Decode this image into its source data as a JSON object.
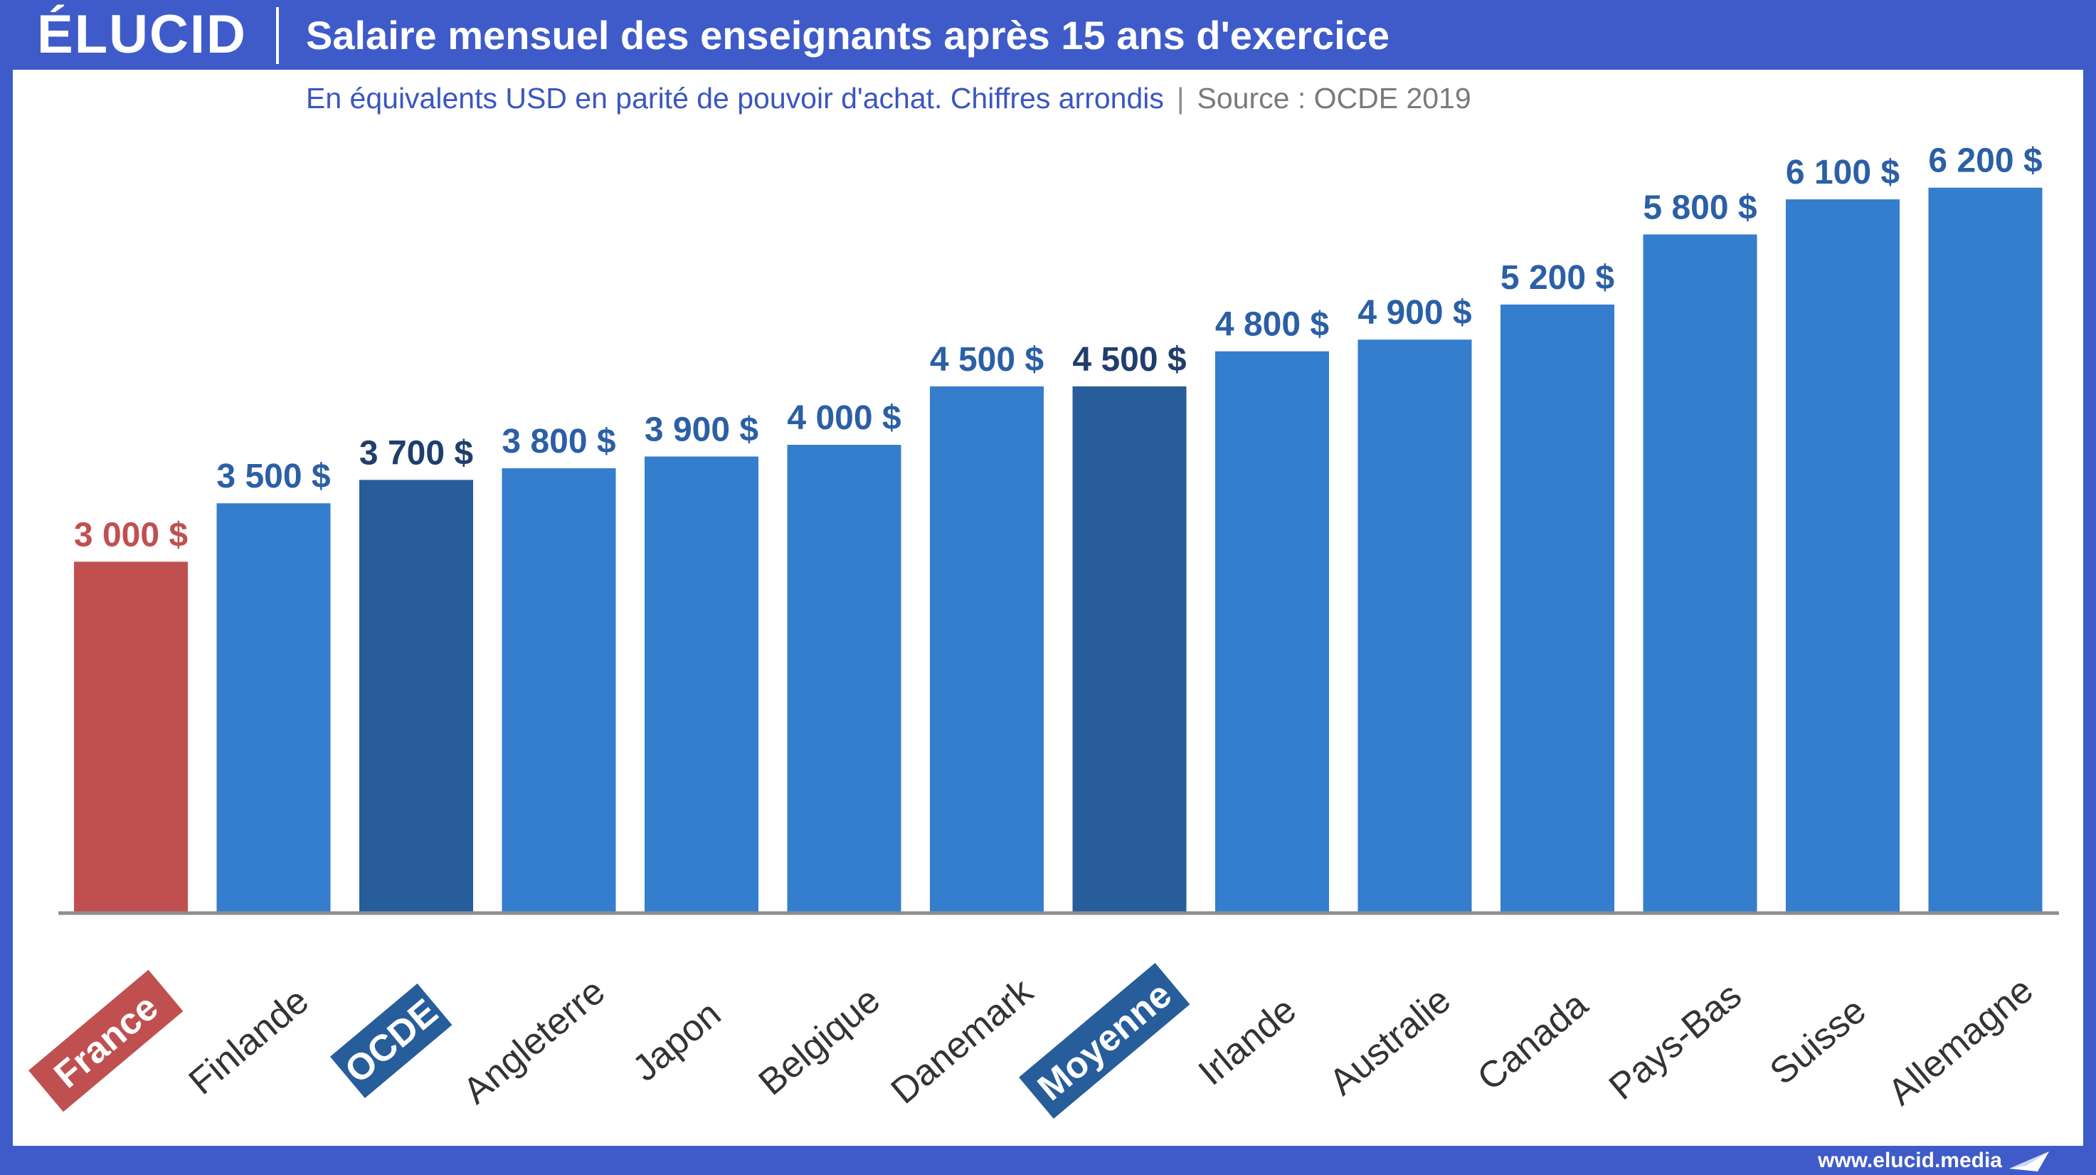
{
  "header": {
    "logo": "ÉLUCID",
    "title": "Salaire mensuel des enseignants après 15 ans d'exercice"
  },
  "subtitle": {
    "main": "En équivalents USD en parité de pouvoir d'achat. Chiffres arrondis",
    "separator": "|",
    "source": "Source : OCDE 2019"
  },
  "footer": {
    "url": "www.elucid.media"
  },
  "colors": {
    "default_bar": "#357dcd",
    "highlight_bar": "#265d9a",
    "france_bar": "#c05050",
    "default_label": "#2b5fa6",
    "highlight_label": "#1f3e6c",
    "france_label": "#c05050",
    "category_text": "#333333",
    "tag_text": "#ffffff"
  },
  "chart_data": {
    "type": "bar",
    "title": "Salaire mensuel des enseignants après 15 ans d'exercice",
    "xlabel": "",
    "ylabel": "",
    "ylim": [
      0,
      6600
    ],
    "grid": false,
    "legend": "none",
    "categories": [
      "France",
      "Finlande",
      "OCDE",
      "Angleterre",
      "Japon",
      "Belgique",
      "Danemark",
      "Moyenne",
      "Irlande",
      "Australie",
      "Canada",
      "Pays-Bas",
      "Suisse",
      "Allemagne"
    ],
    "values": [
      3000,
      3500,
      3700,
      3800,
      3900,
      4000,
      4500,
      4500,
      4800,
      4900,
      5200,
      5800,
      6100,
      6200
    ],
    "value_labels": [
      "3 000 $",
      "3 500 $",
      "3 700 $",
      "3 800 $",
      "3 900 $",
      "4 000 $",
      "4 500 $",
      "4 500 $",
      "4 800 $",
      "4 900 $",
      "5 200 $",
      "5 800 $",
      "6 100 $",
      "6 200 $"
    ],
    "styles": [
      "france",
      "default",
      "highlight",
      "default",
      "default",
      "default",
      "default",
      "highlight",
      "default",
      "default",
      "default",
      "default",
      "default",
      "default"
    ]
  }
}
